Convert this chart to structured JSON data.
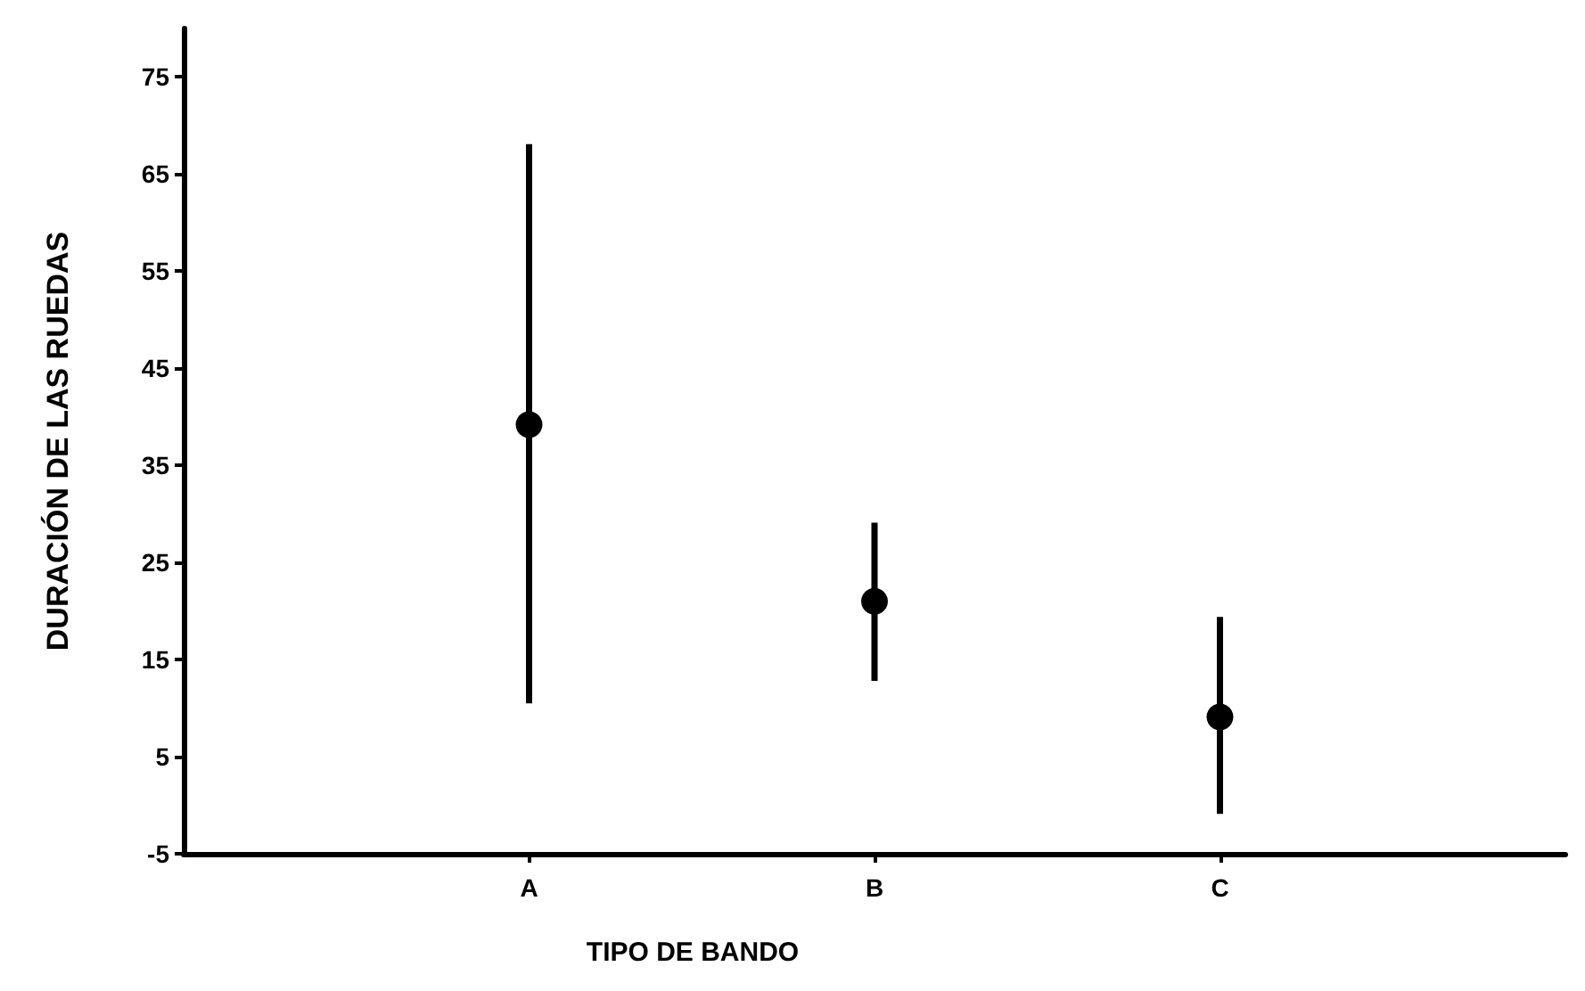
{
  "chart_data": {
    "type": "scatter",
    "xlabel": "TIPO DE BANDO",
    "ylabel": "DURACIÓN DE LAS RUEDAS",
    "categories": [
      "A",
      "B",
      "C"
    ],
    "values": [
      39.2,
      21,
      9.1
    ],
    "errors": [
      [
        10.5,
        68.1
      ],
      [
        12.8,
        29.1
      ],
      [
        -0.9,
        19.4
      ]
    ],
    "color": "#000000",
    "marker": "circle",
    "ylim": [
      -5,
      80
    ],
    "yticks": [
      -5,
      5,
      15,
      25,
      35,
      45,
      55,
      65,
      75
    ],
    "grid": false
  }
}
